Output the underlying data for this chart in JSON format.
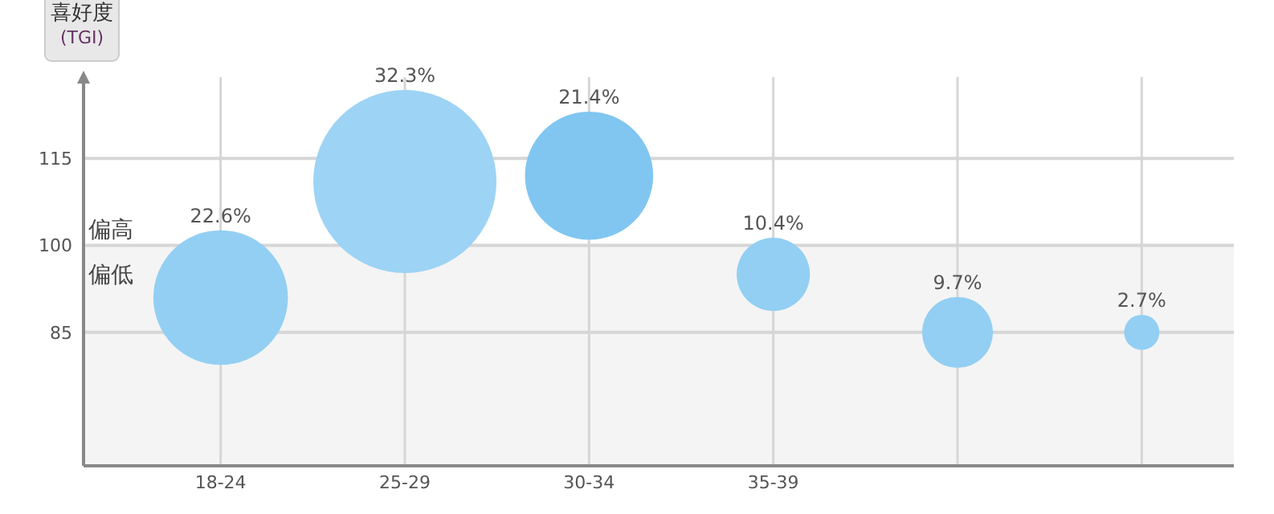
{
  "chart_data": {
    "type": "bubble",
    "ylabel": "喜好度\n(TGI)",
    "categories": [
      "18-24",
      "25-29",
      "30-34",
      "35-39",
      null,
      null
    ],
    "values": [
      91,
      111,
      112,
      95,
      85,
      85
    ],
    "sizes": [
      0.54,
      1,
      0.49,
      0.16,
      0.15,
      0.037
    ],
    "colors": [
      "#93cff3",
      "#9dd3f4",
      "#80c6f1",
      "#93cff3",
      "#93cff3",
      "#93cff3"
    ],
    "ylim": [
      62,
      129
    ],
    "yticks": [
      85,
      100,
      115
    ],
    "bands": [
      {
        "axis": "y",
        "from": 62,
        "to": 100,
        "label": "偏低",
        "color": "#f4f4f4"
      }
    ],
    "annotations": [
      "偏高",
      "22.6%",
      "32.3%",
      "21.4%",
      "10.4%",
      "9.7%",
      "2.7%"
    ],
    "grid": true
  }
}
